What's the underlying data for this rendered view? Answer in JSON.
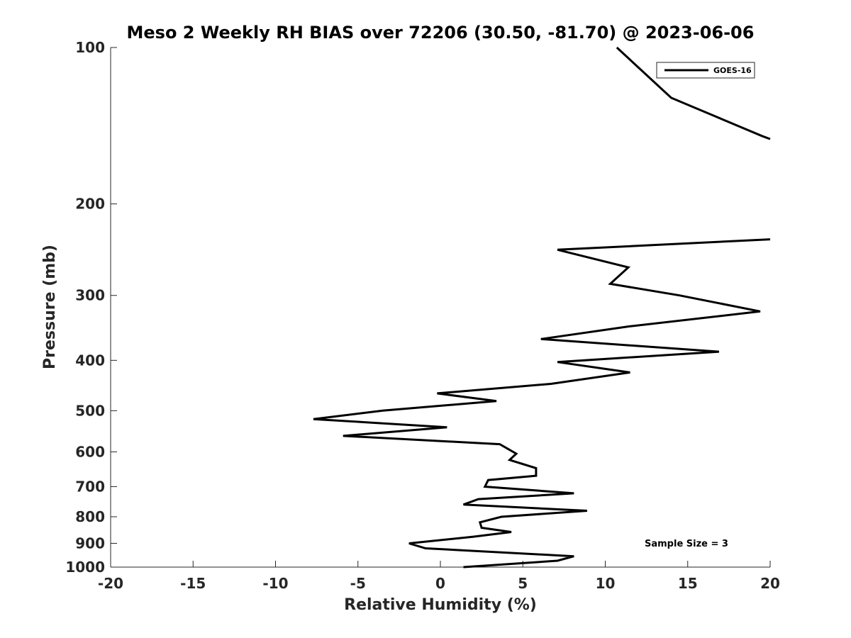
{
  "chart_data": {
    "type": "line",
    "title": "Meso 2 Weekly RH BIAS over 72206 (30.50, -81.70) @ 2023-06-06",
    "xlabel": "Relative Humidity (%)",
    "ylabel": "Pressure (mb)",
    "xlim": [
      -20,
      20
    ],
    "ylim": [
      100,
      1000
    ],
    "y_scale": "log",
    "y_reversed": true,
    "grid": false,
    "legend_position": "top-right",
    "x_ticks": [
      "-20",
      "-15",
      "-10",
      "-5",
      "0",
      "5",
      "10",
      "15",
      "20"
    ],
    "y_ticks": [
      "100",
      "200",
      "300",
      "400",
      "500",
      "600",
      "700",
      "800",
      "900",
      "1000"
    ],
    "annotation": "Sample Size = 3",
    "series": [
      {
        "name": "GOES-16",
        "color": "#000000",
        "points": [
          [
            10.7,
            100
          ],
          [
            14.0,
            125
          ],
          [
            19.5,
            148
          ],
          [
            20.0,
            150
          ]
        ]
      },
      {
        "name": "GOES-16",
        "color": "#000000",
        "points": [
          [
            20.0,
            234
          ],
          [
            7.1,
            245
          ],
          [
            11.4,
            265
          ],
          [
            10.3,
            285
          ],
          [
            14.5,
            300
          ],
          [
            19.4,
            322
          ],
          [
            11.5,
            344
          ],
          [
            6.1,
            364
          ],
          [
            16.9,
            385
          ],
          [
            7.1,
            403
          ],
          [
            11.5,
            422
          ],
          [
            6.7,
            444
          ],
          [
            -0.2,
            463
          ],
          [
            3.4,
            479
          ],
          [
            -3.5,
            500
          ],
          [
            -7.7,
            519
          ],
          [
            0.4,
            538
          ],
          [
            -5.9,
            559
          ],
          [
            3.6,
            580
          ],
          [
            4.6,
            605
          ],
          [
            4.2,
            622
          ],
          [
            5.8,
            645
          ],
          [
            5.8,
            667
          ],
          [
            2.9,
            680
          ],
          [
            2.7,
            700
          ],
          [
            8.1,
            721
          ],
          [
            2.3,
            740
          ],
          [
            1.4,
            758
          ],
          [
            8.9,
            779
          ],
          [
            3.7,
            800
          ],
          [
            2.4,
            820
          ],
          [
            2.5,
            840
          ],
          [
            4.3,
            856
          ],
          [
            2.0,
            874
          ],
          [
            -1.9,
            900
          ],
          [
            -0.9,
            920
          ],
          [
            8.1,
            953
          ],
          [
            7.1,
            972
          ],
          [
            1.4,
            1000
          ]
        ]
      }
    ]
  }
}
